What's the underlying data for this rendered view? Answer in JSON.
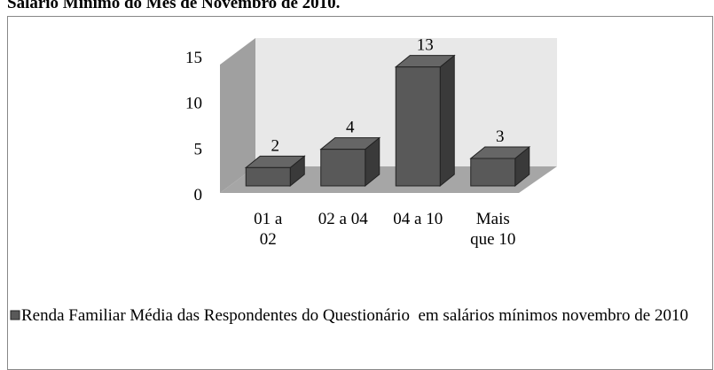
{
  "chart_data": {
    "type": "bar3d",
    "title": "Salário Mínimo do Mês de Novembro de 2010.",
    "categories": [
      "01 a 02",
      "02 a 04",
      "04 a 10",
      "Mais que 10"
    ],
    "series": [
      {
        "name": "Renda Familiar Média das Respondentes do Questionário  em salários mínimos novembro de 2010",
        "color": "#595959",
        "values": [
          2,
          4,
          13,
          3
        ]
      }
    ],
    "ylim": [
      0,
      15
    ],
    "yticks": [
      0,
      5,
      10,
      15
    ],
    "legend": "bottom"
  }
}
